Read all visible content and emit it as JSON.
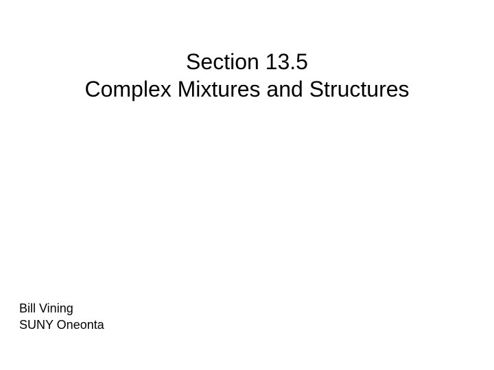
{
  "slide": {
    "title_line1": "Section 13.5",
    "title_line2": "Complex Mixtures and Structures",
    "author_name": "Bill Vining",
    "author_affiliation": "SUNY Oneonta",
    "background_color": "#ffffff",
    "text_color": "#000000",
    "title_fontsize": 32,
    "author_fontsize": 18,
    "font_family": "Arial"
  }
}
